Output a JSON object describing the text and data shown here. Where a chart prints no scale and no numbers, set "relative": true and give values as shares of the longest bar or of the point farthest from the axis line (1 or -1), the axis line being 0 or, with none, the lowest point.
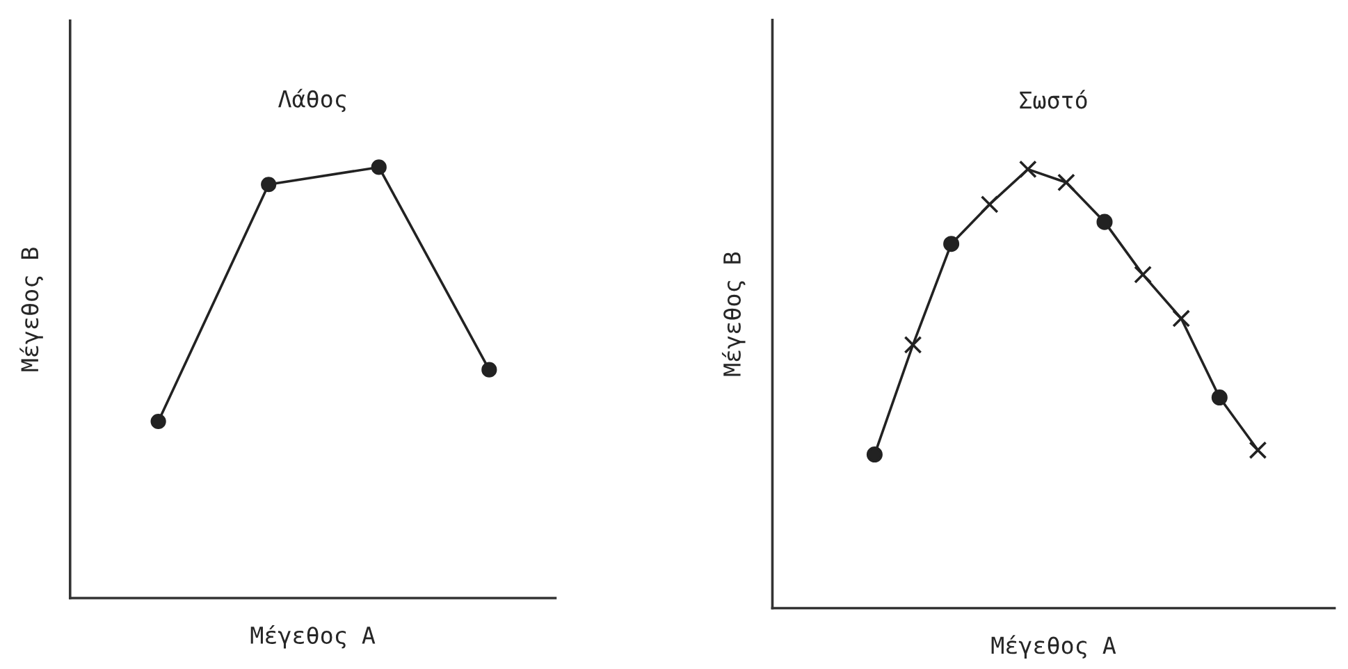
{
  "chart_data": [
    {
      "type": "line",
      "title": "Λάθος",
      "xlabel": "Μέγεθος Α",
      "ylabel": "Μέγεθος Β",
      "relative": true,
      "tick_labels": false,
      "categories": [
        null,
        null,
        null,
        null
      ],
      "series": [
        {
          "color": "#222222",
          "marker": "circle",
          "values": [
            0.41,
            0.96,
            1,
            0.53
          ]
        }
      ]
    },
    {
      "type": "line",
      "title": "Σωστό",
      "xlabel": "Μέγεθος Α",
      "ylabel": "Μέγεθος Β",
      "relative": true,
      "tick_labels": false,
      "categories": [
        null,
        null,
        null,
        null,
        null,
        null,
        null,
        null,
        null,
        null,
        null
      ],
      "series": [
        {
          "color": "#222222",
          "marker": [
            "circle",
            "cross",
            "circle",
            "cross",
            "cross",
            "cross",
            "circle",
            "cross",
            "cross",
            "circle",
            "cross"
          ],
          "values": [
            0.35,
            0.6,
            0.83,
            0.92,
            1,
            0.97,
            0.88,
            0.76,
            0.66,
            0.48,
            0.36
          ]
        }
      ]
    }
  ]
}
